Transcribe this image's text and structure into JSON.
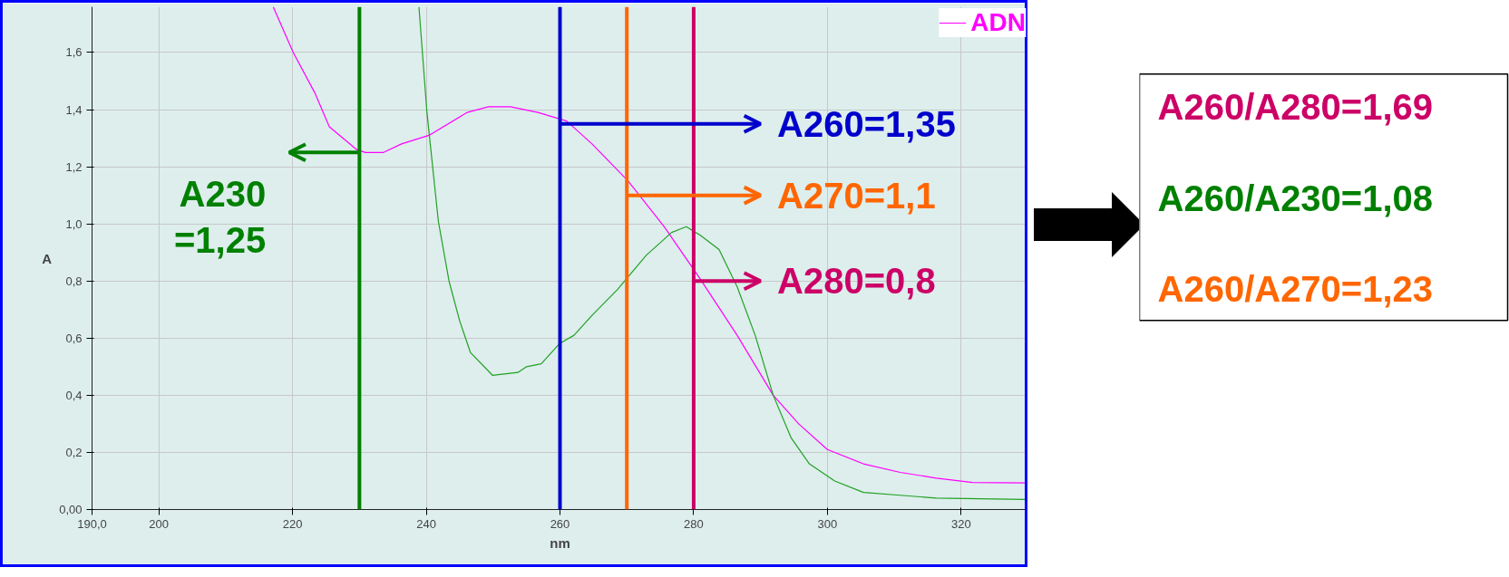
{
  "chart_data": {
    "type": "line",
    "xlabel": "nm",
    "ylabel": "A",
    "xlim": [
      190,
      330
    ],
    "ylim": [
      0,
      1.76
    ],
    "xticks": [
      {
        "value": 190,
        "label": "190,0"
      },
      200,
      220,
      240,
      260,
      280,
      300,
      320
    ],
    "yticks": [
      {
        "value": 0,
        "label": "0,00"
      },
      {
        "value": 0.2,
        "label": "0,2"
      },
      {
        "value": 0.4,
        "label": "0,4"
      },
      {
        "value": 0.6,
        "label": "0,6"
      },
      {
        "value": 0.8,
        "label": "0,8"
      },
      {
        "value": 1.0,
        "label": "1,0"
      },
      {
        "value": 1.2,
        "label": "1,2"
      },
      {
        "value": 1.4,
        "label": "1,4"
      },
      {
        "value": 1.6,
        "label": "1,6"
      }
    ],
    "grid": true,
    "legend": "top right",
    "series": [
      {
        "name": "ADN",
        "color": "#ff00ff",
        "x": [
          217.1,
          220.1,
          223.3,
          225.5,
          229.6,
          230.9,
          233.6,
          236.3,
          240.4,
          246.1,
          249.3,
          252.6,
          256.7,
          261,
          264.8,
          270.2,
          275.6,
          280.9,
          286.5,
          291.9,
          295.7,
          300,
          305.4,
          310.9,
          316.3,
          321.7,
          329.8
        ],
        "values": [
          1.76,
          1.6,
          1.46,
          1.34,
          1.26,
          1.25,
          1.25,
          1.28,
          1.31,
          1.39,
          1.41,
          1.41,
          1.39,
          1.36,
          1.28,
          1.15,
          0.99,
          0.81,
          0.61,
          0.4,
          0.3,
          0.21,
          0.16,
          0.13,
          0.11,
          0.095,
          0.093
        ]
      },
      {
        "color": "#22a022",
        "x": [
          238.9,
          240.1,
          241.8,
          243.4,
          245,
          246.6,
          249.9,
          253.7,
          255,
          257.2,
          259.9,
          262.1,
          264.8,
          268.6,
          272.9,
          276.7,
          278.9,
          281,
          283.8,
          286.5,
          289.2,
          291.9,
          294.6,
          297.3,
          301.1,
          305.4,
          310.9,
          316.3,
          329.8
        ],
        "values": [
          1.76,
          1.39,
          1.01,
          0.8,
          0.66,
          0.55,
          0.47,
          0.48,
          0.5,
          0.51,
          0.58,
          0.61,
          0.68,
          0.77,
          0.89,
          0.97,
          0.99,
          0.96,
          0.91,
          0.78,
          0.61,
          0.4,
          0.25,
          0.16,
          0.1,
          0.06,
          0.05,
          0.04,
          0.035
        ]
      }
    ],
    "ref_lines": [
      {
        "axis": "x",
        "value": 230,
        "color": "#008000"
      },
      {
        "axis": "x",
        "value": 260,
        "color": "#0000cc"
      },
      {
        "axis": "x",
        "value": 270,
        "color": "#ff6600"
      },
      {
        "axis": "x",
        "value": 280,
        "color": "#cc0066"
      }
    ],
    "annotations": [
      {
        "text": "A230\n=1,25",
        "x": 230,
        "y": 1.25
      },
      {
        "text": "A260=1,35",
        "x": 260,
        "y": 1.35
      },
      {
        "text": "A270=1,1",
        "x": 270,
        "y": 1.1
      },
      {
        "text": "A280=0,8",
        "x": 280,
        "y": 0.8
      },
      "A260/A280=1,69",
      "A260/A230=1,08",
      "A260/A270=1,23"
    ]
  }
}
